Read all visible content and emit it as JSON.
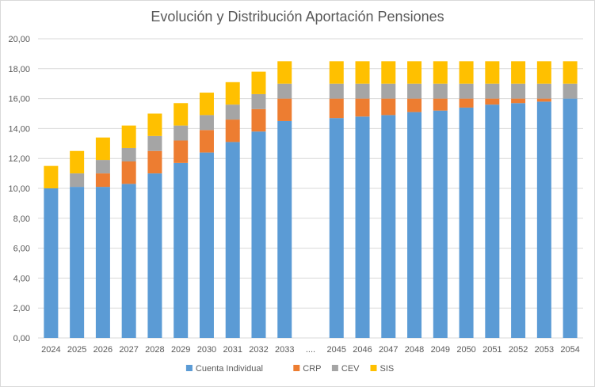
{
  "chart_data": {
    "type": "bar",
    "stacked": true,
    "title": "Evolución y Distribución Aportación Pensiones",
    "categories": [
      "2024",
      "2025",
      "2026",
      "2027",
      "2028",
      "2029",
      "2030",
      "2031",
      "2032",
      "2033",
      "....",
      "2045",
      "2046",
      "2047",
      "2048",
      "2049",
      "2050",
      "2051",
      "2052",
      "2053",
      "2054"
    ],
    "series": [
      {
        "name": "Cuenta Individual",
        "color": "#5b9bd5",
        "values": [
          10.0,
          10.1,
          10.1,
          10.3,
          11.0,
          11.7,
          12.4,
          13.1,
          13.8,
          14.5,
          null,
          14.7,
          14.8,
          14.9,
          15.1,
          15.2,
          15.4,
          15.6,
          15.7,
          15.8,
          16.0
        ]
      },
      {
        "name": "CRP",
        "color": "#ed7d31",
        "values": [
          0.0,
          0.0,
          0.9,
          1.5,
          1.5,
          1.5,
          1.5,
          1.5,
          1.5,
          1.5,
          null,
          1.3,
          1.2,
          1.1,
          0.9,
          0.8,
          0.6,
          0.4,
          0.3,
          0.2,
          0.0
        ]
      },
      {
        "name": "CEV",
        "color": "#a5a5a5",
        "values": [
          0.0,
          0.9,
          0.9,
          0.9,
          1.0,
          1.0,
          1.0,
          1.0,
          1.0,
          1.0,
          null,
          1.0,
          1.0,
          1.0,
          1.0,
          1.0,
          1.0,
          1.0,
          1.0,
          1.0,
          1.0
        ]
      },
      {
        "name": "SIS",
        "color": "#ffc000",
        "values": [
          1.5,
          1.5,
          1.5,
          1.5,
          1.5,
          1.5,
          1.5,
          1.5,
          1.5,
          1.5,
          null,
          1.5,
          1.5,
          1.5,
          1.5,
          1.5,
          1.5,
          1.5,
          1.5,
          1.5,
          1.5
        ]
      }
    ],
    "ylim": [
      0,
      20
    ],
    "yticks": [
      "0,00",
      "2,00",
      "4,00",
      "6,00",
      "8,00",
      "10,00",
      "12,00",
      "14,00",
      "16,00",
      "18,00",
      "20,00"
    ],
    "grid": true,
    "gridColor": "#d9d9d9",
    "legend_position": "bottom"
  }
}
